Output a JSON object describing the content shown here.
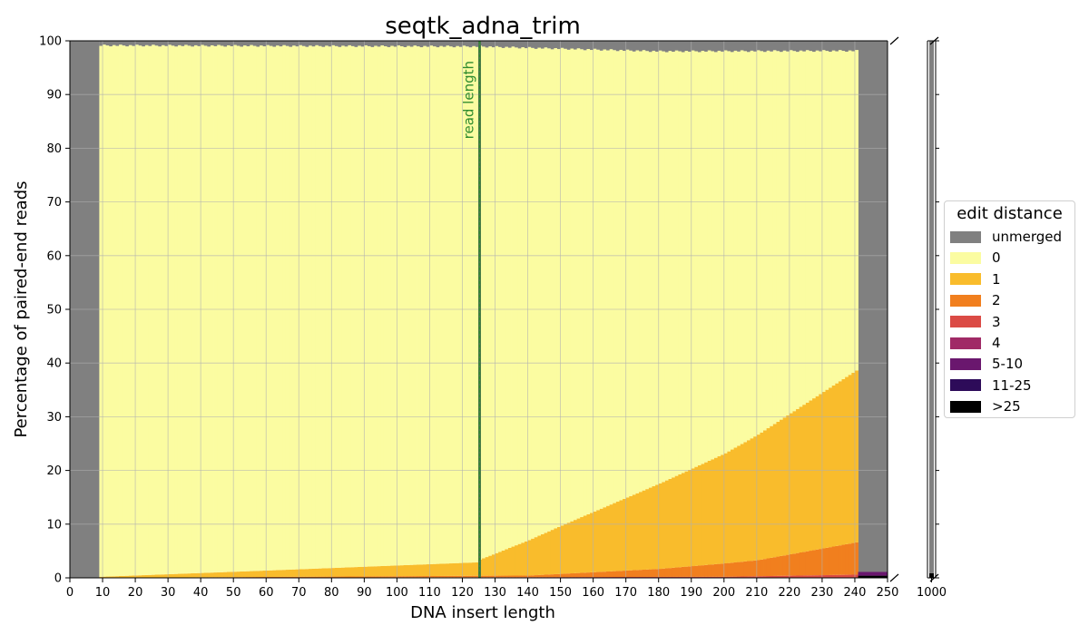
{
  "chart_data": {
    "type": "bar",
    "stacked": true,
    "title": "seqtk_adna_trim",
    "xlabel": "DNA insert length",
    "ylabel": "Percentage of paired-end reads",
    "xlim": [
      0,
      250
    ],
    "ylim": [
      0,
      100
    ],
    "broken_axis_extra_tick": "1000",
    "x_ticks": [
      "0",
      "10",
      "20",
      "30",
      "40",
      "50",
      "60",
      "70",
      "80",
      "90",
      "100",
      "110",
      "120",
      "130",
      "140",
      "150",
      "160",
      "170",
      "180",
      "190",
      "200",
      "210",
      "220",
      "230",
      "240",
      "250"
    ],
    "y_ticks": [
      "0",
      "10",
      "20",
      "30",
      "40",
      "50",
      "60",
      "70",
      "80",
      "90",
      "100"
    ],
    "grid": true,
    "annotation": {
      "text": "read length",
      "x": 125,
      "color": "#2e8b2e"
    },
    "legend": {
      "title": "edit distance",
      "placement": "right",
      "entries": [
        {
          "label": "unmerged",
          "color": "#808080"
        },
        {
          "label": "0",
          "color": "#fbfca1"
        },
        {
          "label": "1",
          "color": "#f9bc2c"
        },
        {
          "label": "2",
          "color": "#f17f1e"
        },
        {
          "label": "3",
          "color": "#db4b45"
        },
        {
          "label": "4",
          "color": "#a02a66"
        },
        {
          "label": "5-10",
          "color": "#6a176e"
        },
        {
          "label": "11-25",
          "color": "#2d0b59"
        },
        {
          "label": ">25",
          "color": "#000000"
        }
      ]
    },
    "x_categories_start": 9,
    "x_categories_end": 240,
    "series": [
      {
        "name": "1",
        "x_knots": [
          9,
          60,
          124,
          125,
          150,
          200,
          240
        ],
        "y_knots": [
          0.2,
          1.2,
          2.5,
          3.0,
          9.0,
          20.5,
          32.0
        ]
      },
      {
        "name": "2",
        "x_knots": [
          9,
          140,
          180,
          210,
          240
        ],
        "y_knots": [
          0.0,
          0.3,
          1.5,
          3.0,
          6.0
        ]
      },
      {
        "name": "3",
        "x_knots": [
          9,
          200,
          240
        ],
        "y_knots": [
          0.0,
          0.2,
          0.6
        ]
      },
      {
        "name": "unmerged",
        "x_knots": [
          9,
          125,
          180,
          240
        ],
        "y_knots": [
          0.7,
          0.9,
          1.8,
          1.7
        ]
      }
    ],
    "outside_range_unmerged": [
      0,
      8,
      241,
      250
    ],
    "tail_bins": {
      "x": [
        241,
        250
      ],
      "11-25": 0.7,
      ">25": 0.4
    }
  }
}
